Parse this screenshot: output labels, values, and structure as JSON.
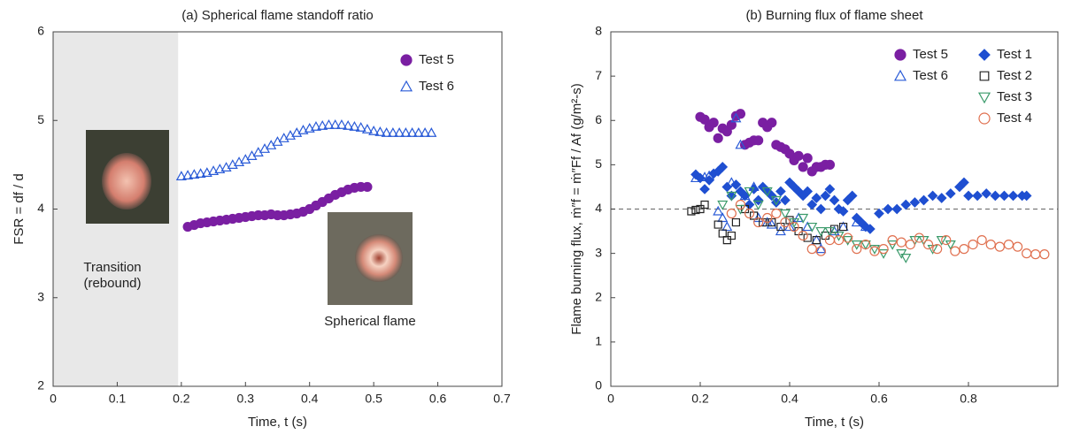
{
  "chart_data": [
    {
      "type": "scatter",
      "title": "(a) Spherical flame standoff ratio",
      "x_label": "Time, t (s)",
      "y_label": "FSR = df / d",
      "xlim": [
        0,
        0.7
      ],
      "xticks": [
        0,
        0.1,
        0.2,
        0.3,
        0.4,
        0.5,
        0.6,
        0.7
      ],
      "ylim": [
        2,
        6
      ],
      "yticks": [
        2,
        3,
        4,
        5,
        6
      ],
      "shaded_region": [
        0,
        0.195
      ],
      "annotations": [
        "Transition",
        "(rebound)",
        "Spherical flame"
      ],
      "series": [
        {
          "name": "Test 5",
          "color": "#7a1fa2",
          "marker": "circle",
          "filled": true,
          "x": [
            0.21,
            0.22,
            0.23,
            0.24,
            0.25,
            0.26,
            0.27,
            0.28,
            0.29,
            0.3,
            0.31,
            0.32,
            0.33,
            0.34,
            0.35,
            0.36,
            0.37,
            0.38,
            0.39,
            0.4,
            0.41,
            0.42,
            0.43,
            0.44,
            0.45,
            0.46,
            0.47,
            0.48,
            0.49
          ],
          "values": [
            3.8,
            3.82,
            3.84,
            3.85,
            3.86,
            3.87,
            3.88,
            3.89,
            3.9,
            3.91,
            3.92,
            3.93,
            3.93,
            3.94,
            3.93,
            3.93,
            3.94,
            3.95,
            3.97,
            4.0,
            4.04,
            4.08,
            4.12,
            4.16,
            4.19,
            4.22,
            4.24,
            4.25,
            4.25
          ]
        },
        {
          "name": "Test 6",
          "color": "#2a5bd7",
          "marker": "triangle",
          "filled": false,
          "x": [
            0.2,
            0.21,
            0.22,
            0.23,
            0.24,
            0.25,
            0.26,
            0.27,
            0.28,
            0.29,
            0.3,
            0.31,
            0.32,
            0.33,
            0.34,
            0.35,
            0.36,
            0.37,
            0.38,
            0.39,
            0.4,
            0.41,
            0.42,
            0.43,
            0.44,
            0.45,
            0.46,
            0.47,
            0.48,
            0.49,
            0.5,
            0.51,
            0.52,
            0.53,
            0.54,
            0.55,
            0.56,
            0.57,
            0.58,
            0.59
          ],
          "values": [
            4.37,
            4.38,
            4.39,
            4.4,
            4.41,
            4.43,
            4.45,
            4.47,
            4.5,
            4.53,
            4.56,
            4.6,
            4.64,
            4.68,
            4.72,
            4.76,
            4.8,
            4.83,
            4.86,
            4.89,
            4.91,
            4.93,
            4.94,
            4.95,
            4.95,
            4.95,
            4.94,
            4.93,
            4.92,
            4.9,
            4.88,
            4.87,
            4.86,
            4.86,
            4.86,
            4.86,
            4.86,
            4.86,
            4.86,
            4.86
          ]
        }
      ]
    },
    {
      "type": "scatter",
      "title": "(b) Burning flux of flame sheet",
      "x_label": "Time, t (s)",
      "y_label": "Flame burning flux, ṁ″f = ṁ″Ff / Af (g/m²-s)",
      "xlim": [
        0,
        1
      ],
      "xticks": [
        0,
        0.2,
        0.4,
        0.6,
        0.8
      ],
      "ylim": [
        0,
        8
      ],
      "yticks": [
        0,
        1,
        2,
        3,
        4,
        5,
        6,
        7,
        8
      ],
      "hline": 4,
      "series": [
        {
          "name": "Test 5",
          "color": "#7a1fa2",
          "marker": "circle",
          "filled": true,
          "x": [
            0.2,
            0.21,
            0.22,
            0.23,
            0.24,
            0.25,
            0.26,
            0.27,
            0.28,
            0.29,
            0.3,
            0.31,
            0.32,
            0.33,
            0.34,
            0.35,
            0.36,
            0.37,
            0.38,
            0.39,
            0.4,
            0.41,
            0.42,
            0.43,
            0.44,
            0.45,
            0.46,
            0.47,
            0.48,
            0.49
          ],
          "values": [
            6.08,
            6.02,
            5.85,
            5.95,
            5.6,
            5.82,
            5.75,
            5.9,
            6.1,
            6.15,
            5.45,
            5.5,
            5.55,
            5.55,
            5.95,
            5.85,
            5.95,
            5.45,
            5.4,
            5.35,
            5.25,
            5.1,
            5.2,
            4.95,
            5.15,
            4.85,
            4.95,
            4.95,
            5.0,
            5.0
          ]
        },
        {
          "name": "Test 6",
          "color": "#2a5bd7",
          "marker": "triangle",
          "filled": false,
          "x": [
            0.19,
            0.21,
            0.22,
            0.24,
            0.25,
            0.26,
            0.27,
            0.28,
            0.29,
            0.3,
            0.32,
            0.33,
            0.35,
            0.36,
            0.38,
            0.4,
            0.42,
            0.44,
            0.46,
            0.47,
            0.5,
            0.52,
            0.55,
            0.57
          ],
          "values": [
            4.7,
            4.72,
            4.75,
            3.95,
            3.8,
            3.6,
            4.6,
            6.05,
            5.45,
            4.3,
            4.5,
            3.8,
            3.7,
            3.65,
            3.5,
            3.6,
            3.8,
            3.6,
            3.3,
            3.1,
            3.5,
            3.6,
            3.7,
            3.6
          ]
        },
        {
          "name": "Test 1",
          "color": "#1f4fd1",
          "marker": "diamond",
          "filled": true,
          "x": [
            0.19,
            0.2,
            0.21,
            0.22,
            0.23,
            0.24,
            0.25,
            0.26,
            0.27,
            0.28,
            0.29,
            0.3,
            0.31,
            0.32,
            0.33,
            0.34,
            0.35,
            0.36,
            0.37,
            0.38,
            0.39,
            0.4,
            0.41,
            0.42,
            0.43,
            0.44,
            0.45,
            0.46,
            0.47,
            0.48,
            0.49,
            0.5,
            0.51,
            0.52,
            0.53,
            0.54,
            0.55,
            0.56,
            0.57,
            0.58,
            0.6,
            0.62,
            0.64,
            0.66,
            0.68,
            0.7,
            0.72,
            0.74,
            0.76,
            0.78,
            0.79,
            0.8,
            0.82,
            0.84,
            0.86,
            0.88,
            0.9,
            0.92,
            0.93
          ],
          "values": [
            4.78,
            4.7,
            4.45,
            4.65,
            4.8,
            4.85,
            4.95,
            4.5,
            4.3,
            4.55,
            4.4,
            4.3,
            4.1,
            4.45,
            4.2,
            4.5,
            4.4,
            4.3,
            4.15,
            4.4,
            4.2,
            4.6,
            4.5,
            4.4,
            4.3,
            4.4,
            4.1,
            4.25,
            4.0,
            4.3,
            4.45,
            4.2,
            4.0,
            3.95,
            4.2,
            4.3,
            3.8,
            3.7,
            3.6,
            3.55,
            3.9,
            4.0,
            4.0,
            4.1,
            4.15,
            4.2,
            4.3,
            4.25,
            4.35,
            4.5,
            4.6,
            4.3,
            4.3,
            4.35,
            4.3,
            4.3,
            4.3,
            4.3,
            4.3
          ]
        },
        {
          "name": "Test 2",
          "color": "#222222",
          "marker": "square",
          "filled": false,
          "x": [
            0.18,
            0.19,
            0.2,
            0.21,
            0.24,
            0.25,
            0.26,
            0.27,
            0.28,
            0.3,
            0.32,
            0.34,
            0.36,
            0.38,
            0.4,
            0.42,
            0.44,
            0.46,
            0.48,
            0.5,
            0.52
          ],
          "values": [
            3.95,
            3.98,
            4.0,
            4.1,
            3.65,
            3.45,
            3.3,
            3.4,
            3.7,
            4.0,
            3.85,
            3.7,
            3.7,
            3.6,
            3.75,
            3.5,
            3.35,
            3.3,
            3.4,
            3.55,
            3.6
          ]
        },
        {
          "name": "Test 3",
          "color": "#3a9a6a",
          "marker": "triangle-down",
          "filled": false,
          "x": [
            0.25,
            0.27,
            0.29,
            0.31,
            0.33,
            0.35,
            0.37,
            0.39,
            0.41,
            0.43,
            0.45,
            0.47,
            0.49,
            0.51,
            0.53,
            0.55,
            0.57,
            0.59,
            0.61,
            0.63,
            0.65,
            0.66,
            0.68,
            0.7,
            0.72,
            0.74,
            0.76
          ],
          "values": [
            4.1,
            4.3,
            4.0,
            4.4,
            4.1,
            4.4,
            4.2,
            3.9,
            3.7,
            3.8,
            3.6,
            3.5,
            3.5,
            3.4,
            3.3,
            3.2,
            3.2,
            3.1,
            3.0,
            3.2,
            3.0,
            2.9,
            3.3,
            3.3,
            3.1,
            3.3,
            3.2
          ]
        },
        {
          "name": "Test 4",
          "color": "#e0704f",
          "marker": "circle",
          "filled": false,
          "x": [
            0.27,
            0.29,
            0.31,
            0.33,
            0.35,
            0.37,
            0.39,
            0.41,
            0.43,
            0.45,
            0.47,
            0.49,
            0.51,
            0.53,
            0.55,
            0.57,
            0.59,
            0.61,
            0.63,
            0.65,
            0.67,
            0.69,
            0.71,
            0.73,
            0.75,
            0.77,
            0.79,
            0.81,
            0.83,
            0.85,
            0.87,
            0.89,
            0.91,
            0.93,
            0.95,
            0.97
          ],
          "values": [
            3.9,
            4.1,
            3.9,
            3.7,
            3.8,
            3.9,
            3.7,
            3.6,
            3.4,
            3.1,
            3.05,
            3.3,
            3.3,
            3.35,
            3.1,
            3.2,
            3.05,
            3.1,
            3.3,
            3.25,
            3.2,
            3.35,
            3.2,
            3.1,
            3.3,
            3.05,
            3.1,
            3.2,
            3.3,
            3.2,
            3.15,
            3.2,
            3.15,
            3.0,
            2.98,
            2.98
          ]
        }
      ]
    }
  ]
}
